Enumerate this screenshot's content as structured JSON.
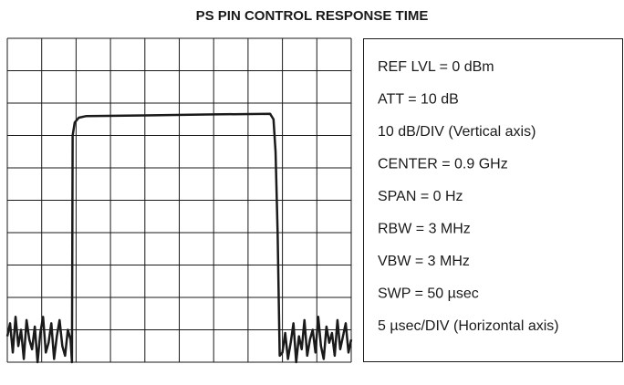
{
  "chart_data": {
    "type": "line",
    "title": "PS PIN CONTROL RESPONSE TIME",
    "x": [
      0,
      0.4,
      0.8,
      1.2,
      1.6,
      2,
      2.4,
      2.8,
      3.2,
      3.6,
      4,
      4.4,
      4.8,
      5.2,
      5.6,
      6,
      6.4,
      6.8,
      7.2,
      7.6,
      8,
      8.4,
      8.8,
      9.2,
      9.4,
      9.5,
      9.8,
      10.4,
      11.5,
      20,
      30,
      38.2,
      38.7,
      39,
      39.3,
      39.6,
      40,
      40.4,
      40.8,
      41.2,
      41.6,
      42,
      42.4,
      42.8,
      43.2,
      43.6,
      44,
      44.4,
      44.8,
      45.2,
      45.6,
      46,
      46.4,
      46.8,
      47.2,
      47.6,
      48,
      48.4,
      48.8,
      49.2,
      49.6,
      50
    ],
    "series": [
      {
        "color": "#1a1a1a",
        "values": [
          -92,
          -88,
          -97,
          -86,
          -95,
          -90,
          -99,
          -87,
          -93,
          -96,
          -89,
          -100,
          -91,
          -86,
          -97,
          -94,
          -88,
          -99,
          -92,
          -87,
          -95,
          -98,
          -90,
          -93,
          -100,
          -30,
          -26,
          -24.5,
          -24,
          -23.8,
          -23.5,
          -23.3,
          -25,
          -35,
          -60,
          -98,
          -97,
          -91,
          -99,
          -94,
          -88,
          -100,
          -92,
          -96,
          -87,
          -98,
          -93,
          -90,
          -97,
          -86,
          -95,
          -99,
          -89,
          -94,
          -91,
          -98,
          -87,
          -96,
          -92,
          -88,
          -97,
          -93
        ]
      }
    ],
    "xlim": [
      0,
      50
    ],
    "ylim": [
      -100,
      0
    ],
    "xticks": [
      0,
      5,
      10,
      15,
      20,
      25,
      30,
      35,
      40,
      45,
      50
    ],
    "yticks": [
      0,
      -10,
      -20,
      -30,
      -40,
      -50,
      -60,
      -70,
      -80,
      -90,
      -100
    ],
    "grid": true,
    "info": [
      "REF LVL = 0 dBm",
      "ATT = 10 dB",
      "10 dB/DIV (Vertical axis)",
      "CENTER = 0.9 GHz",
      "SPAN = 0 Hz",
      "RBW = 3 MHz",
      "VBW = 3 MHz",
      "SWP = 50 µsec",
      "5 µsec/DIV (Horizontal axis)"
    ]
  }
}
